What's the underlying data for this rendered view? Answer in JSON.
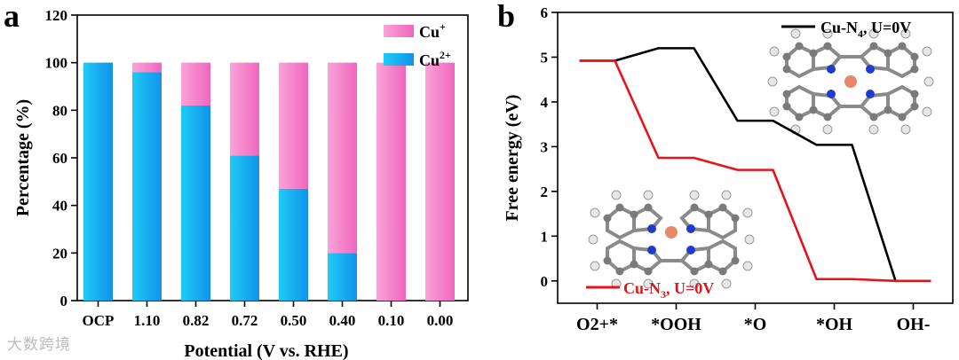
{
  "watermark": "大数跨境",
  "chart_data": [
    {
      "panel_label": "a",
      "type": "bar",
      "stacked": true,
      "categories": [
        "OCP",
        "1.10",
        "0.82",
        "0.72",
        "0.50",
        "0.40",
        "0.10",
        "0.00"
      ],
      "series": [
        {
          "name": "Cu2+",
          "display_name": "Cu",
          "superscript": "2+",
          "color": "#19b2f2",
          "values": [
            100,
            96,
            82,
            61,
            47,
            20,
            0,
            0
          ]
        },
        {
          "name": "Cu+",
          "display_name": "Cu",
          "superscript": "+",
          "color": "#f57fc7",
          "values": [
            0,
            4,
            18,
            39,
            53,
            80,
            100,
            100
          ]
        }
      ],
      "xlabel": "Potential (V vs. RHE)",
      "ylabel": "Percentage (%)",
      "ylim": [
        0,
        120
      ],
      "yticks": [
        0,
        20,
        40,
        60,
        80,
        100,
        120
      ],
      "legend": "top-right"
    },
    {
      "panel_label": "b",
      "type": "line",
      "style": "free-energy-steps",
      "categories": [
        "O2+*",
        "*OOH",
        "*O",
        "*OH",
        "OH-"
      ],
      "series": [
        {
          "name": "Cu-N4, U=0V",
          "prefix": "Cu-N",
          "subscript": "4",
          "suffix": ", U=0V",
          "color": "#000000",
          "values": [
            4.92,
            5.2,
            3.58,
            3.04,
            0
          ]
        },
        {
          "name": "Cu-N3, U=0V",
          "prefix": "Cu-N",
          "subscript": "3",
          "suffix": ", U=0V",
          "color": "#e8121a",
          "values": [
            4.92,
            2.75,
            2.48,
            0.04,
            0
          ]
        }
      ],
      "ylabel": "Free energy (eV)",
      "ylim": [
        -0.5,
        6
      ],
      "yticks": [
        0,
        1,
        2,
        3,
        4,
        5,
        6
      ],
      "legend": "labels near structures"
    }
  ]
}
